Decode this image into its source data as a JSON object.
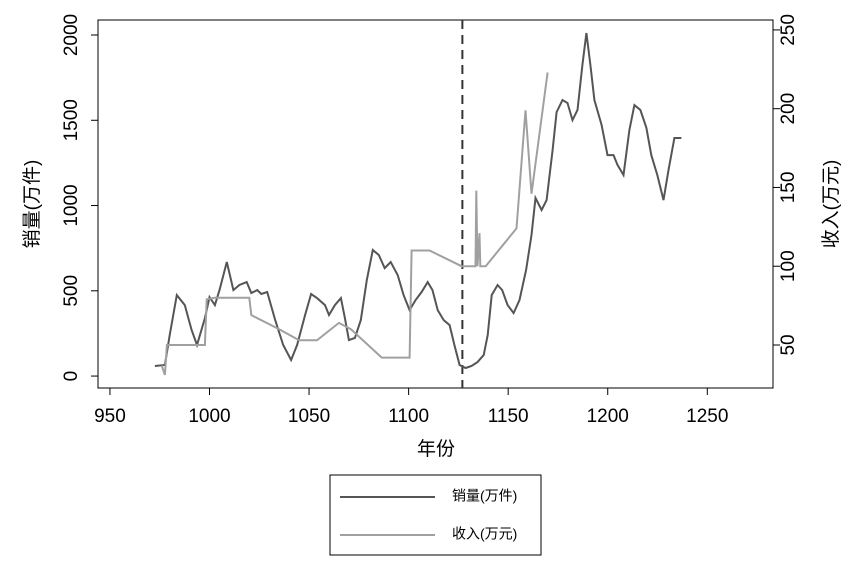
{
  "chart_data": {
    "type": "line",
    "xlabel": "年份",
    "ylabel": "销量(万件)",
    "y2label": "收入(万元)",
    "xlim": [
      944,
      1283
    ],
    "ylim": [
      -70,
      2088
    ],
    "y2lim": [
      22.7,
      256.3
    ],
    "xticks": [
      950,
      1000,
      1050,
      1100,
      1150,
      1200,
      1250
    ],
    "yticks": [
      0,
      500,
      1000,
      1500,
      2000
    ],
    "y2ticks": [
      50,
      100,
      150,
      200,
      250
    ],
    "reference_line_x": 1127,
    "series": [
      {
        "name": "销量(万件)",
        "color": "#555555",
        "x": [
          972.6,
          977.6,
          980,
          983.6,
          987.6,
          991,
          993.7,
          997.7,
          1000,
          1002.7,
          1005,
          1008.7,
          1012,
          1015,
          1018.7,
          1021,
          1024,
          1026,
          1029,
          1033,
          1037,
          1041,
          1044,
          1048,
          1051,
          1054,
          1058,
          1060,
          1063,
          1066,
          1068,
          1070,
          1073,
          1076,
          1079,
          1082,
          1085,
          1088,
          1091,
          1094.5,
          1097.5,
          1100.5,
          1103.5,
          1106.5,
          1109.6,
          1112,
          1114.6,
          1117.6,
          1120.6,
          1123,
          1125.6,
          1128.6,
          1131.6,
          1134.6,
          1137.7,
          1139.7,
          1141.7,
          1144.7,
          1147,
          1149.7,
          1152.7,
          1155.7,
          1159,
          1161.7,
          1163.7,
          1166.8,
          1169.3,
          1172.3,
          1174.3,
          1177.3,
          1179.8,
          1182.3,
          1184.8,
          1187.3,
          1189.3,
          1191.3,
          1193.3,
          1196.9,
          1199.9,
          1202.9,
          1204.9,
          1207.9,
          1210.9,
          1213.4,
          1216.4,
          1219.4,
          1221.9,
          1224.9,
          1228,
          1230.5,
          1233.5,
          1237
        ],
        "values": [
          59,
          65,
          240,
          475,
          416,
          270,
          182,
          340,
          463,
          416,
          504,
          669,
          504,
          534,
          551,
          487,
          504,
          481,
          493,
          328,
          182,
          94,
          182,
          358,
          481,
          457,
          416,
          358,
          416,
          457,
          340,
          211,
          223,
          328,
          563,
          739,
          710,
          633,
          669,
          592,
          475,
          387,
          446,
          493,
          551,
          504,
          387,
          328,
          299,
          182,
          65,
          47,
          59,
          82,
          123,
          240,
          475,
          534,
          504,
          416,
          369,
          446,
          622,
          827,
          1044,
          974,
          1032,
          1325,
          1548,
          1619,
          1601,
          1501,
          1560,
          1824,
          2012,
          1824,
          1619,
          1472,
          1296,
          1296,
          1238,
          1179,
          1443,
          1589,
          1560,
          1455,
          1296,
          1179,
          1032,
          1208,
          1396,
          1396
        ]
      },
      {
        "name": "收入(万元)",
        "color": "#a0a0a0",
        "axis": "y2",
        "x": [
          976,
          977.6,
          978.6,
          997.7,
          998.6,
          1002.7,
          1020,
          1021,
          1035,
          1045,
          1054,
          1065,
          1071,
          1086.5,
          1100.5,
          1101.5,
          1110.5,
          1126.6,
          1133.6,
          1134,
          1134.6,
          1135.6,
          1136,
          1138.7,
          1154.2,
          1158.7,
          1161.7,
          1169.8
        ],
        "values": [
          37,
          31,
          50,
          50,
          79,
          80,
          80,
          69,
          60,
          53,
          53,
          64,
          60,
          42,
          42,
          110,
          110,
          100,
          100,
          148,
          100,
          121,
          100,
          100,
          124,
          199,
          146,
          223
        ]
      }
    ]
  }
}
